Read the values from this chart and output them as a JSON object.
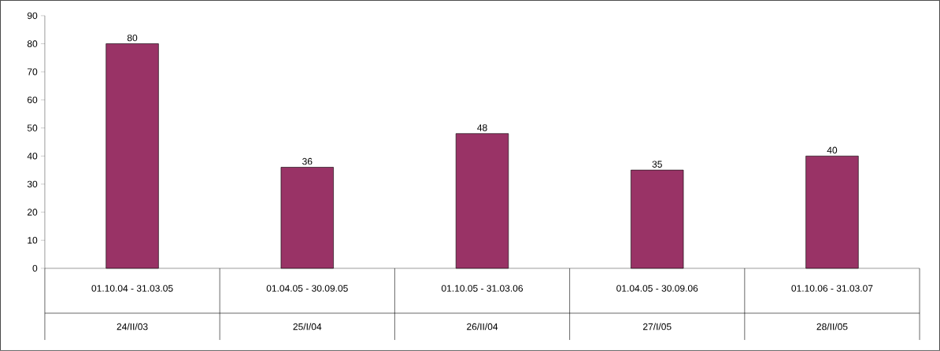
{
  "chart_data": {
    "type": "bar",
    "categories": [
      "01.10.04 - 31.03.05",
      "01.04.05 - 30.09.05",
      "01.10.05 - 31.03.06",
      "01.04.05 - 30.09.06",
      "01.10.06 - 31.03.07"
    ],
    "annotations": [
      "24/II/03",
      "25/I/04",
      "26/II/04",
      "27/I/05",
      "28/II/05"
    ],
    "values": [
      80,
      36,
      48,
      35,
      40
    ],
    "color": "#993366",
    "ylim": [
      0,
      90
    ],
    "yticks": [
      0,
      10,
      20,
      30,
      40,
      50,
      60,
      70,
      80,
      90
    ],
    "data_labels": true
  }
}
